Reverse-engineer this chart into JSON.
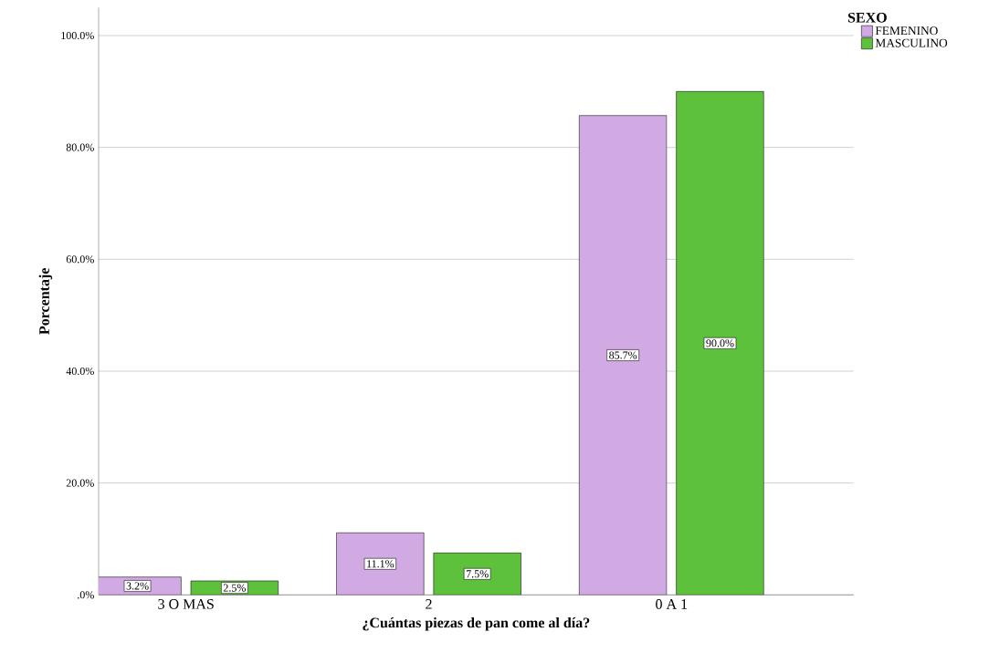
{
  "chart_data": {
    "type": "bar",
    "xlabel": "¿Cuántas piezas de pan come al día?",
    "ylabel": "Porcentaje",
    "legend_title": "SEXO",
    "categories": [
      "3 O MAS",
      "2",
      "0 A 1"
    ],
    "series": [
      {
        "name": "FEMENINO",
        "color": "#d1a9e3",
        "values": [
          3.2,
          11.1,
          85.7
        ],
        "value_labels": [
          "3.2%",
          "11.1%",
          "85.7%"
        ]
      },
      {
        "name": "MASCULINO",
        "color": "#5dc13b",
        "values": [
          2.5,
          7.5,
          90.0
        ],
        "value_labels": [
          "2.5%",
          "7.5%",
          "90.0%"
        ]
      }
    ],
    "ylim": [
      0,
      105
    ],
    "yticks": [
      {
        "value": 0,
        "label": ".0%"
      },
      {
        "value": 20,
        "label": "20.0%"
      },
      {
        "value": 40,
        "label": "40.0%"
      },
      {
        "value": 60,
        "label": "60.0%"
      },
      {
        "value": 80,
        "label": "80.0%"
      },
      {
        "value": 100,
        "label": "100.0%"
      }
    ],
    "grid": "y",
    "legend": "top right"
  }
}
